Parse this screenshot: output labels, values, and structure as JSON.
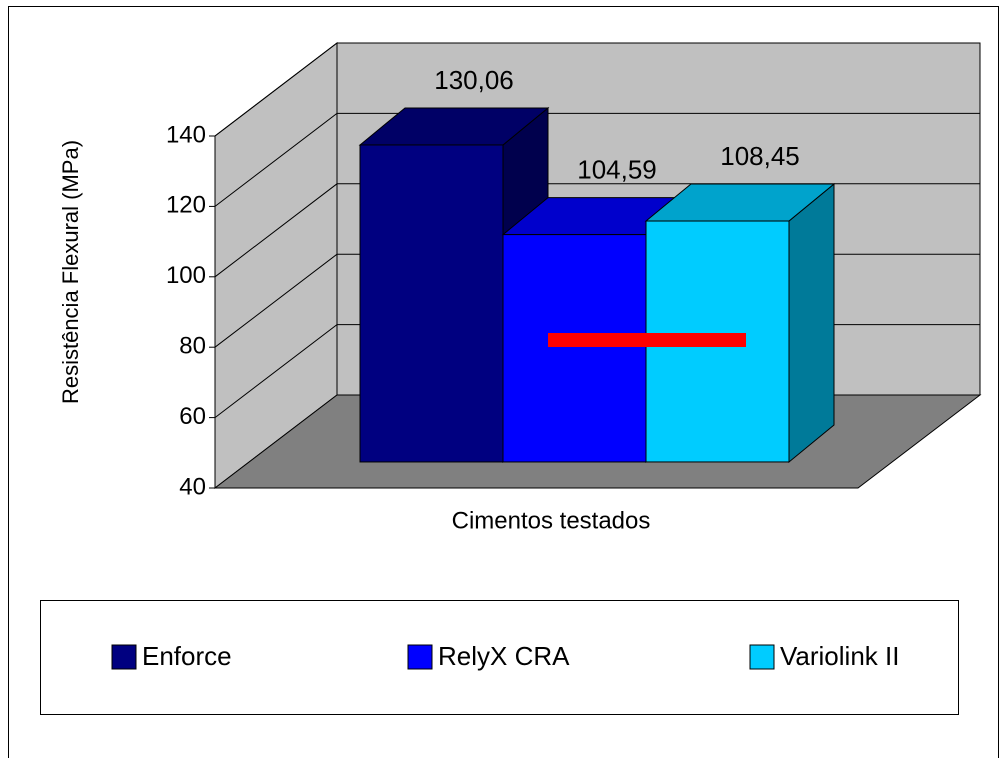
{
  "chart_data": {
    "type": "bar3d",
    "x_label": "Cimentos testados",
    "y_label": "Resistência Flexural (MPa)",
    "series": [
      {
        "name": "Enforce",
        "color": "#000080",
        "values": [
          130.06
        ],
        "value_labels": [
          "130,06"
        ]
      },
      {
        "name": "RelyX CRA",
        "color": "#0000ff",
        "values": [
          104.59
        ],
        "value_labels": [
          "104,59"
        ]
      },
      {
        "name": "Variolink II",
        "color": "#00ccff",
        "values": [
          108.45
        ],
        "value_labels": [
          "108,45"
        ]
      }
    ],
    "ylim": [
      40,
      140
    ],
    "yticks": [
      40,
      60,
      80,
      100,
      120,
      140
    ],
    "grid": true,
    "legend": "bottom"
  }
}
